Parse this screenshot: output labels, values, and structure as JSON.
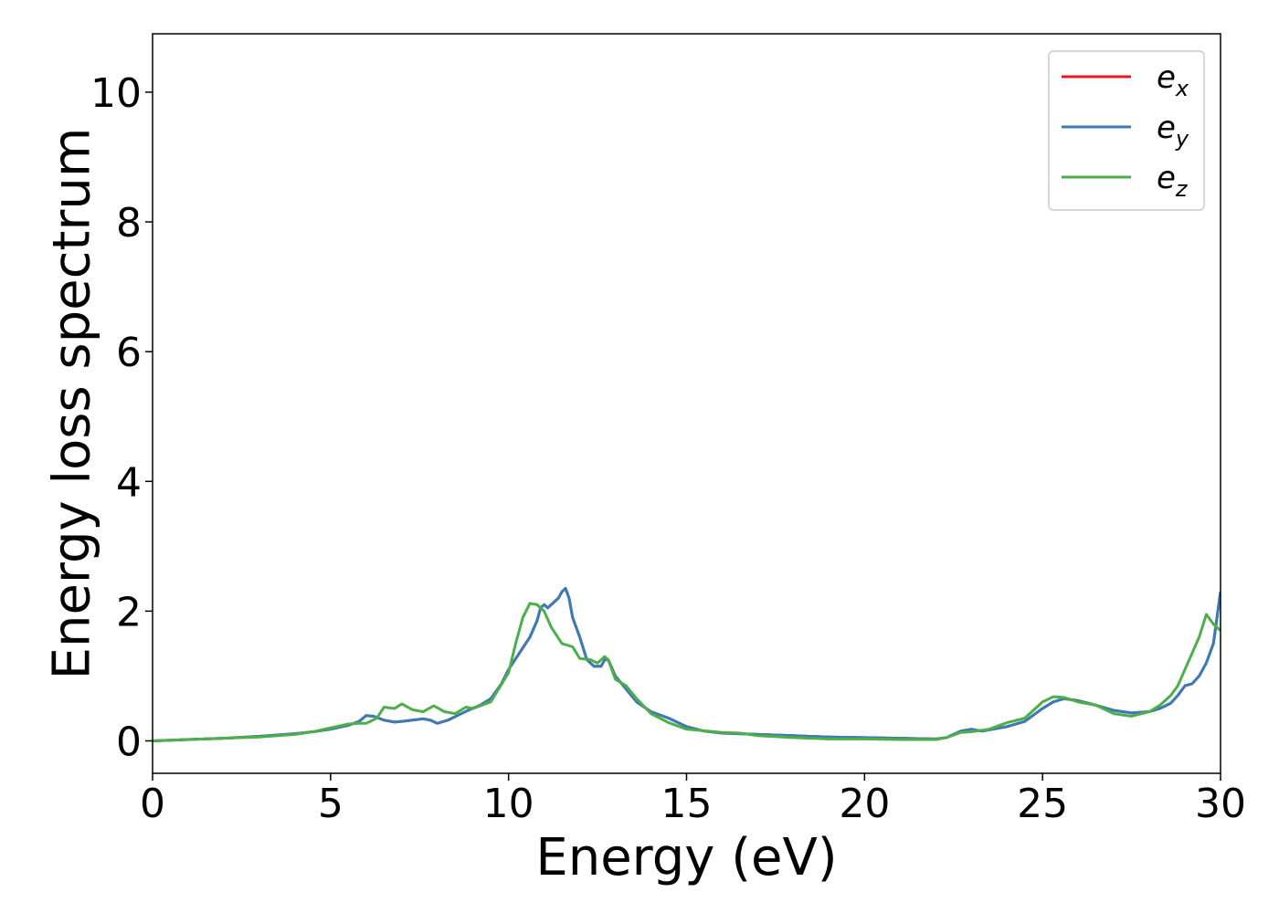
{
  "chart_data": {
    "type": "line",
    "title": "",
    "xlabel": "Energy (eV)",
    "ylabel": "Energy loss spectrum",
    "xlim": [
      0,
      30
    ],
    "ylim": [
      -0.5,
      10.9
    ],
    "xticks": [
      0,
      5,
      10,
      15,
      20,
      25,
      30
    ],
    "yticks": [
      0,
      2,
      4,
      6,
      8,
      10
    ],
    "grid": false,
    "legend_position": "top-right",
    "series": [
      {
        "name": "e",
        "subscript": "x",
        "color": "#e41a1c",
        "x": [
          0,
          1,
          2,
          3,
          4,
          4.5,
          5,
          5.5,
          5.8,
          6,
          6.2,
          6.5,
          6.8,
          7,
          7.3,
          7.6,
          7.8,
          8,
          8.3,
          8.6,
          8.9,
          9.2,
          9.5,
          9.8,
          10,
          10.3,
          10.6,
          10.8,
          10.9,
          11,
          11.1,
          11.2,
          11.4,
          11.5,
          11.6,
          11.7,
          11.8,
          12,
          12.2,
          12.4,
          12.6,
          12.7,
          12.8,
          13,
          13.3,
          13.6,
          14,
          14.5,
          15,
          15.5,
          16,
          17,
          18,
          19,
          20,
          21,
          22,
          22.3,
          22.7,
          23,
          23.3,
          23.6,
          24,
          24.5,
          25,
          25.3,
          25.6,
          26,
          26.5,
          27,
          27.5,
          28,
          28.3,
          28.6,
          28.8,
          29,
          29.2,
          29.4,
          29.6,
          29.8,
          30
        ],
        "values": [
          0,
          0.02,
          0.04,
          0.07,
          0.11,
          0.14,
          0.18,
          0.24,
          0.3,
          0.39,
          0.38,
          0.32,
          0.29,
          0.3,
          0.32,
          0.34,
          0.32,
          0.27,
          0.32,
          0.4,
          0.48,
          0.55,
          0.65,
          0.88,
          1.1,
          1.35,
          1.6,
          1.85,
          2.05,
          2.1,
          2.05,
          2.1,
          2.2,
          2.3,
          2.35,
          2.2,
          1.9,
          1.6,
          1.25,
          1.15,
          1.15,
          1.25,
          1.25,
          1.0,
          0.8,
          0.6,
          0.45,
          0.35,
          0.22,
          0.15,
          0.12,
          0.1,
          0.08,
          0.06,
          0.05,
          0.04,
          0.03,
          0.05,
          0.15,
          0.18,
          0.15,
          0.18,
          0.22,
          0.3,
          0.5,
          0.6,
          0.65,
          0.62,
          0.55,
          0.47,
          0.43,
          0.45,
          0.5,
          0.58,
          0.7,
          0.85,
          0.88,
          1.0,
          1.2,
          1.5,
          2.3
        ]
      },
      {
        "name": "e",
        "subscript": "y",
        "color": "#377eb8",
        "x": [
          0,
          1,
          2,
          3,
          4,
          4.5,
          5,
          5.5,
          5.8,
          6,
          6.2,
          6.5,
          6.8,
          7,
          7.3,
          7.6,
          7.8,
          8,
          8.3,
          8.6,
          8.9,
          9.2,
          9.5,
          9.8,
          10,
          10.3,
          10.6,
          10.8,
          10.9,
          11,
          11.1,
          11.2,
          11.4,
          11.5,
          11.6,
          11.7,
          11.8,
          12,
          12.2,
          12.4,
          12.6,
          12.7,
          12.8,
          13,
          13.3,
          13.6,
          14,
          14.5,
          15,
          15.5,
          16,
          17,
          18,
          19,
          20,
          21,
          22,
          22.3,
          22.7,
          23,
          23.3,
          23.6,
          24,
          24.5,
          25,
          25.3,
          25.6,
          26,
          26.5,
          27,
          27.5,
          28,
          28.3,
          28.6,
          28.8,
          29,
          29.2,
          29.4,
          29.6,
          29.8,
          30
        ],
        "values": [
          0,
          0.02,
          0.04,
          0.07,
          0.11,
          0.14,
          0.18,
          0.24,
          0.3,
          0.39,
          0.38,
          0.32,
          0.29,
          0.3,
          0.32,
          0.34,
          0.32,
          0.27,
          0.32,
          0.4,
          0.48,
          0.55,
          0.65,
          0.88,
          1.1,
          1.35,
          1.6,
          1.85,
          2.05,
          2.1,
          2.05,
          2.1,
          2.2,
          2.3,
          2.35,
          2.2,
          1.9,
          1.6,
          1.25,
          1.15,
          1.15,
          1.25,
          1.25,
          1.0,
          0.8,
          0.6,
          0.45,
          0.35,
          0.22,
          0.15,
          0.12,
          0.1,
          0.08,
          0.06,
          0.05,
          0.04,
          0.03,
          0.05,
          0.15,
          0.18,
          0.15,
          0.18,
          0.22,
          0.3,
          0.5,
          0.6,
          0.65,
          0.62,
          0.55,
          0.47,
          0.43,
          0.45,
          0.5,
          0.58,
          0.7,
          0.85,
          0.88,
          1.0,
          1.2,
          1.5,
          2.3
        ]
      },
      {
        "name": "e",
        "subscript": "z",
        "color": "#4daf4a",
        "x": [
          0,
          1,
          2,
          3,
          4,
          4.5,
          5,
          5.5,
          5.8,
          6,
          6.3,
          6.5,
          6.8,
          7,
          7.3,
          7.6,
          7.9,
          8.2,
          8.5,
          8.8,
          9,
          9.5,
          10,
          10.2,
          10.4,
          10.6,
          10.8,
          11,
          11.2,
          11.5,
          11.8,
          12,
          12.3,
          12.5,
          12.7,
          12.8,
          13,
          13.3,
          13.6,
          14,
          14.5,
          15,
          16,
          16.5,
          17,
          18,
          19,
          20,
          21,
          22,
          22.3,
          22.7,
          23,
          23.5,
          24,
          24.5,
          25,
          25.3,
          25.6,
          26,
          26.5,
          27,
          27.5,
          28,
          28.3,
          28.6,
          28.8,
          29,
          29.2,
          29.4,
          29.6,
          29.8,
          30
        ],
        "values": [
          0,
          0.02,
          0.04,
          0.06,
          0.1,
          0.14,
          0.2,
          0.26,
          0.27,
          0.27,
          0.35,
          0.52,
          0.5,
          0.57,
          0.48,
          0.45,
          0.54,
          0.45,
          0.42,
          0.52,
          0.5,
          0.6,
          1.05,
          1.5,
          1.9,
          2.12,
          2.1,
          2.0,
          1.75,
          1.5,
          1.45,
          1.27,
          1.25,
          1.2,
          1.3,
          1.25,
          0.95,
          0.85,
          0.65,
          0.42,
          0.28,
          0.18,
          0.13,
          0.12,
          0.08,
          0.05,
          0.03,
          0.03,
          0.02,
          0.02,
          0.05,
          0.13,
          0.14,
          0.18,
          0.28,
          0.35,
          0.6,
          0.68,
          0.67,
          0.6,
          0.55,
          0.42,
          0.38,
          0.45,
          0.55,
          0.7,
          0.85,
          1.1,
          1.35,
          1.6,
          1.95,
          1.8,
          1.7
        ]
      }
    ]
  }
}
